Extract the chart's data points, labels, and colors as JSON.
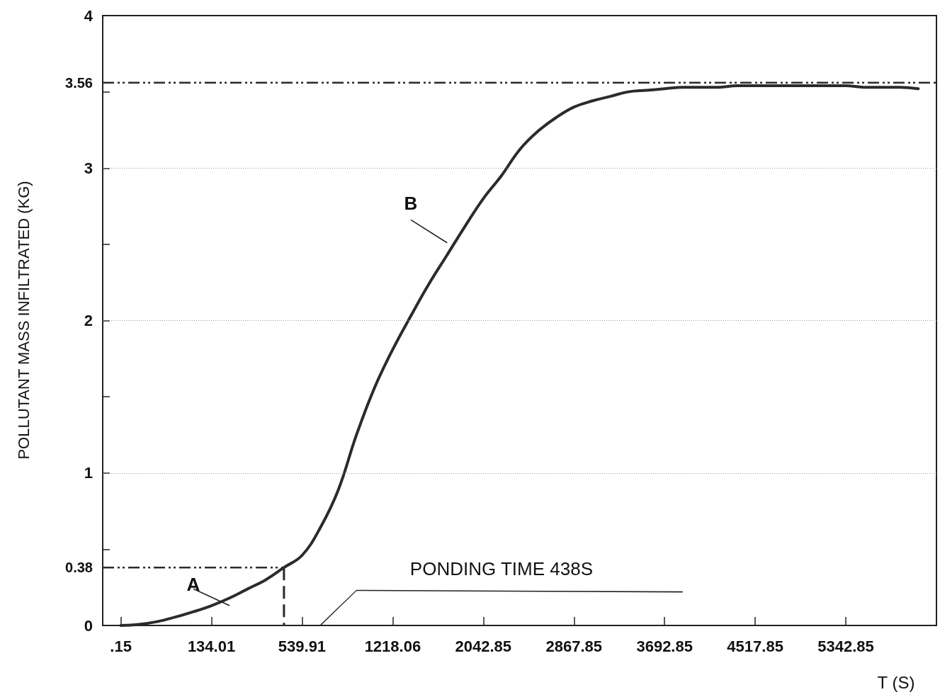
{
  "chart_data": {
    "type": "line",
    "xlabel": "T (S)",
    "ylabel": "POLLUTANT MASS INFILTRATED (KG)",
    "categories": [
      null,
      ".15",
      null,
      null,
      null,
      null,
      "134.01",
      null,
      null,
      null,
      null,
      "539.91",
      null,
      null,
      null,
      null,
      "1218.06",
      null,
      null,
      null,
      null,
      "2042.85",
      null,
      null,
      null,
      null,
      "2867.85",
      null,
      null,
      null,
      null,
      "3692.85",
      null,
      null,
      null,
      null,
      "4517.85",
      null,
      null,
      null,
      null,
      "5342.85",
      null,
      null,
      null,
      null,
      null
    ],
    "series": [
      {
        "color": "#2b2b2b",
        "values": [
          null,
          0,
          0.007,
          0.025,
          0.055,
          0.09,
          0.13,
          0.18,
          0.24,
          0.3,
          0.38,
          0.46,
          0.64,
          0.89,
          1.25,
          1.56,
          1.81,
          2.03,
          2.24,
          2.43,
          2.62,
          2.8,
          2.95,
          3.12,
          3.24,
          3.33,
          3.4,
          3.44,
          3.47,
          3.5,
          3.51,
          3.52,
          3.53,
          3.53,
          3.53,
          3.54,
          3.54,
          3.54,
          3.54,
          3.54,
          3.54,
          3.54,
          3.53,
          3.53,
          3.53,
          3.52,
          null
        ]
      }
    ],
    "ylim": [
      0,
      4
    ],
    "yticks": [
      0,
      {
        "value": 0.5,
        "label": null
      },
      1,
      {
        "value": 1.5,
        "label": null
      },
      2,
      {
        "value": 2.5,
        "label": null
      },
      3,
      {
        "value": 3.5,
        "label": null
      },
      4
    ],
    "ref_lines": [
      {
        "axis": "y",
        "value": 3.56,
        "label": "3.56",
        "line_style": "dashed",
        "color": "#2b2b2b"
      },
      {
        "axis": "y",
        "value": 0.38,
        "label": "0.38",
        "line_style": "dashed",
        "color": "#2b2b2b"
      }
    ],
    "annotations": [
      "A",
      "B",
      "PONDING TIME 438S"
    ],
    "grid": "y",
    "marker": "none",
    "line_style": "solid"
  }
}
